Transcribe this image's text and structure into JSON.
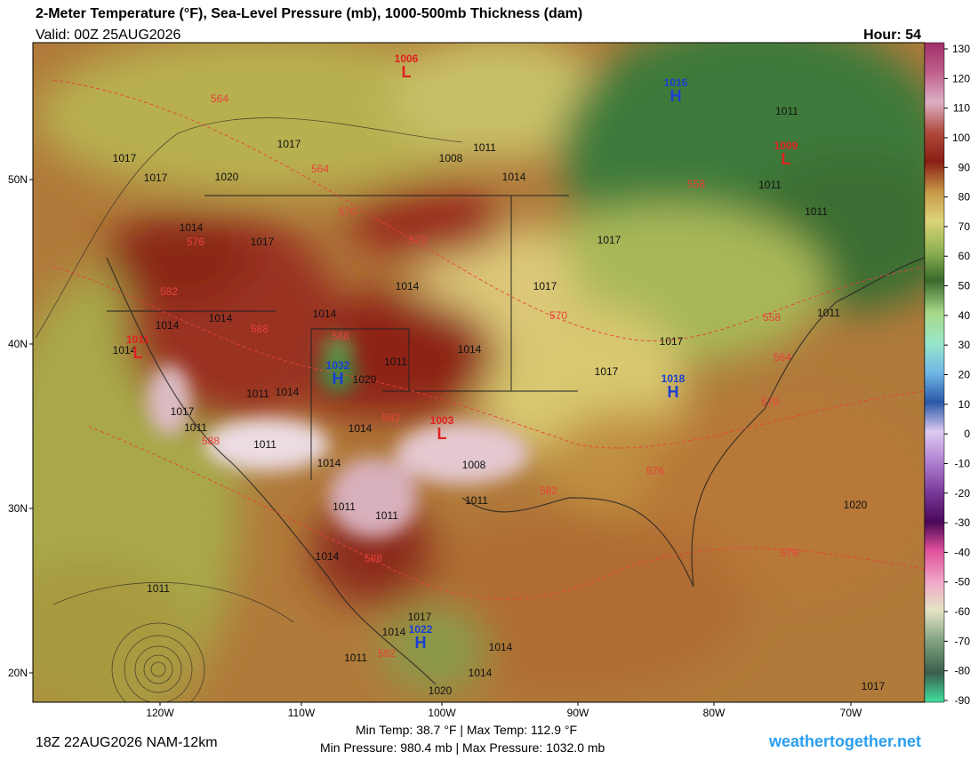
{
  "header": {
    "title": "2-Meter Temperature (°F), Sea-Level Pressure (mb), 1000-500mb Thickness (dam)",
    "valid": "Valid: 00Z 25AUG2026",
    "hour": "Hour: 54"
  },
  "axes": {
    "latitude_labels": [
      "50N",
      "40N",
      "30N",
      "20N"
    ],
    "longitude_labels": [
      "120W",
      "110W",
      "100W",
      "90W",
      "80W",
      "70W"
    ]
  },
  "colorbar": {
    "ticks": [
      130,
      120,
      110,
      100,
      90,
      80,
      70,
      60,
      50,
      40,
      30,
      20,
      10,
      0,
      -10,
      -20,
      -30,
      -40,
      -50,
      -60,
      -70,
      -80,
      -90
    ]
  },
  "map": {
    "isobar_labels": [
      "1017",
      "1017",
      "1020",
      "1017",
      "1014",
      "1017",
      "1014",
      "1014",
      "1014",
      "1014",
      "1017",
      "1011",
      "1011",
      "1011",
      "1011",
      "1017",
      "1017",
      "1017",
      "1014",
      "1011",
      "1020",
      "1014",
      "1011",
      "1017",
      "1011",
      "1011",
      "1014",
      "1014",
      "1008",
      "1011",
      "1011",
      "1011",
      "1014",
      "1011",
      "1017",
      "1014",
      "1014",
      "1011",
      "1014",
      "1020",
      "1020",
      "1017",
      "1014",
      "1008",
      "1011",
      "1014"
    ],
    "thickness_labels": [
      "564",
      "564",
      "570",
      "570",
      "576",
      "582",
      "588",
      "588",
      "588",
      "582",
      "570",
      "558",
      "558",
      "564",
      "570",
      "576",
      "582",
      "576",
      "588",
      "582"
    ],
    "lows": [
      {
        "value": "1006",
        "symbol": "L"
      },
      {
        "value": "1009",
        "symbol": "L"
      },
      {
        "value": "1003",
        "symbol": "L"
      },
      {
        "value": "1011",
        "symbol": "L"
      }
    ],
    "highs": [
      {
        "value": "1016",
        "symbol": "H"
      },
      {
        "value": "1018",
        "symbol": "H"
      },
      {
        "value": "1032",
        "symbol": "H"
      },
      {
        "value": "1022",
        "symbol": "H"
      }
    ]
  },
  "footer": {
    "temperature_range": "Min Temp:  38.7 °F | Max Temp: 112.9 °F",
    "pressure_range": "Min Pressure: 980.4 mb | Max Pressure: 1032.0 mb",
    "model_run": "18Z 22AUG2026 NAM-12km",
    "credit": "weathertogether.net"
  }
}
